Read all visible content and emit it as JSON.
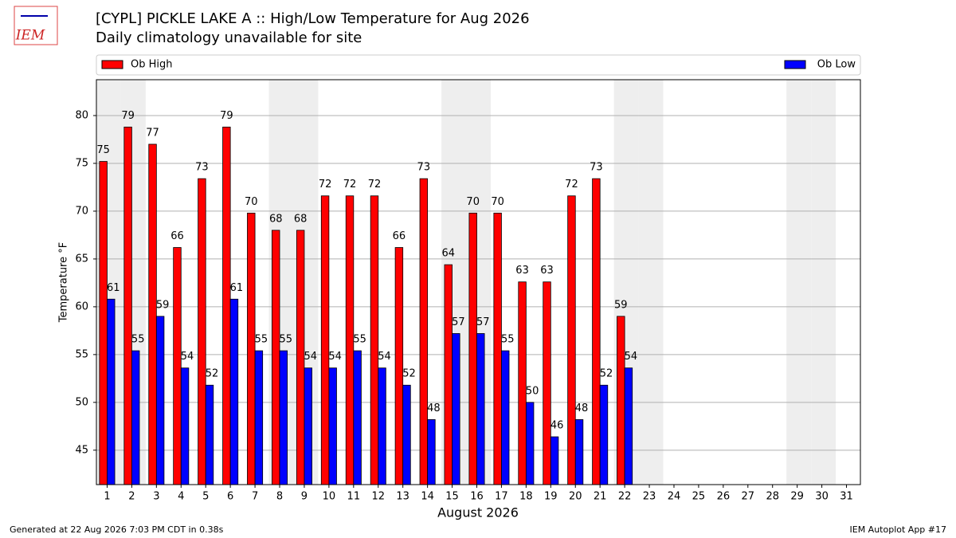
{
  "chart_data": {
    "type": "bar",
    "logo_text": "IEM",
    "title": "[CYPL] PICKLE LAKE  A :: High/Low Temperature for Aug 2026",
    "subtitle": "Daily climatology unavailable for site",
    "x_label": "August 2026",
    "y_label": "Temperature °F",
    "categories": [
      "1",
      "2",
      "3",
      "4",
      "5",
      "6",
      "7",
      "8",
      "9",
      "10",
      "11",
      "12",
      "13",
      "14",
      "15",
      "16",
      "17",
      "18",
      "19",
      "20",
      "21",
      "22",
      "23",
      "24",
      "25",
      "26",
      "27",
      "28",
      "29",
      "30",
      "31"
    ],
    "shaded_categories": [
      "1",
      "2",
      "8",
      "9",
      "15",
      "16",
      "22",
      "23",
      "29",
      "30"
    ],
    "series": [
      {
        "name": "Ob High",
        "color": "#ff0000",
        "values": [
          75.2,
          78.8,
          77.0,
          66.2,
          73.4,
          78.8,
          69.8,
          68.0,
          68.0,
          71.6,
          71.6,
          71.6,
          66.2,
          73.4,
          64.4,
          69.8,
          69.8,
          62.6,
          62.6,
          71.6,
          73.4,
          59.0,
          null,
          null,
          null,
          null,
          null,
          null,
          null,
          null,
          null
        ],
        "value_labels": [
          "75",
          "79",
          "77",
          "66",
          "73",
          "79",
          "70",
          "68",
          "68",
          "72",
          "72",
          "72",
          "66",
          "73",
          "64",
          "70",
          "70",
          "63",
          "63",
          "72",
          "73",
          "59",
          null,
          null,
          null,
          null,
          null,
          null,
          null,
          null,
          null
        ]
      },
      {
        "name": "Ob Low",
        "color": "#0000ff",
        "values": [
          60.8,
          55.4,
          59.0,
          53.6,
          51.8,
          60.8,
          55.4,
          55.4,
          53.6,
          53.6,
          55.4,
          53.6,
          51.8,
          48.2,
          57.2,
          57.2,
          55.4,
          50.0,
          46.4,
          48.2,
          51.8,
          53.6,
          null,
          null,
          null,
          null,
          null,
          null,
          null,
          null,
          null
        ],
        "value_labels": [
          "61",
          "55",
          "59",
          "54",
          "52",
          "61",
          "55",
          "55",
          "54",
          "54",
          "55",
          "54",
          "52",
          "48",
          "57",
          "57",
          "55",
          "50",
          "46",
          "48",
          "52",
          "54",
          null,
          null,
          null,
          null,
          null,
          null,
          null,
          null,
          null
        ]
      }
    ],
    "ylim": [
      41.4,
      83.75
    ],
    "yticks": [
      45,
      50,
      55,
      60,
      65,
      70,
      75,
      80
    ],
    "grid": true,
    "footer_left": "Generated at 22 Aug 2026 7:03 PM CDT in 0.38s",
    "footer_right": "IEM Autoplot App #17"
  }
}
